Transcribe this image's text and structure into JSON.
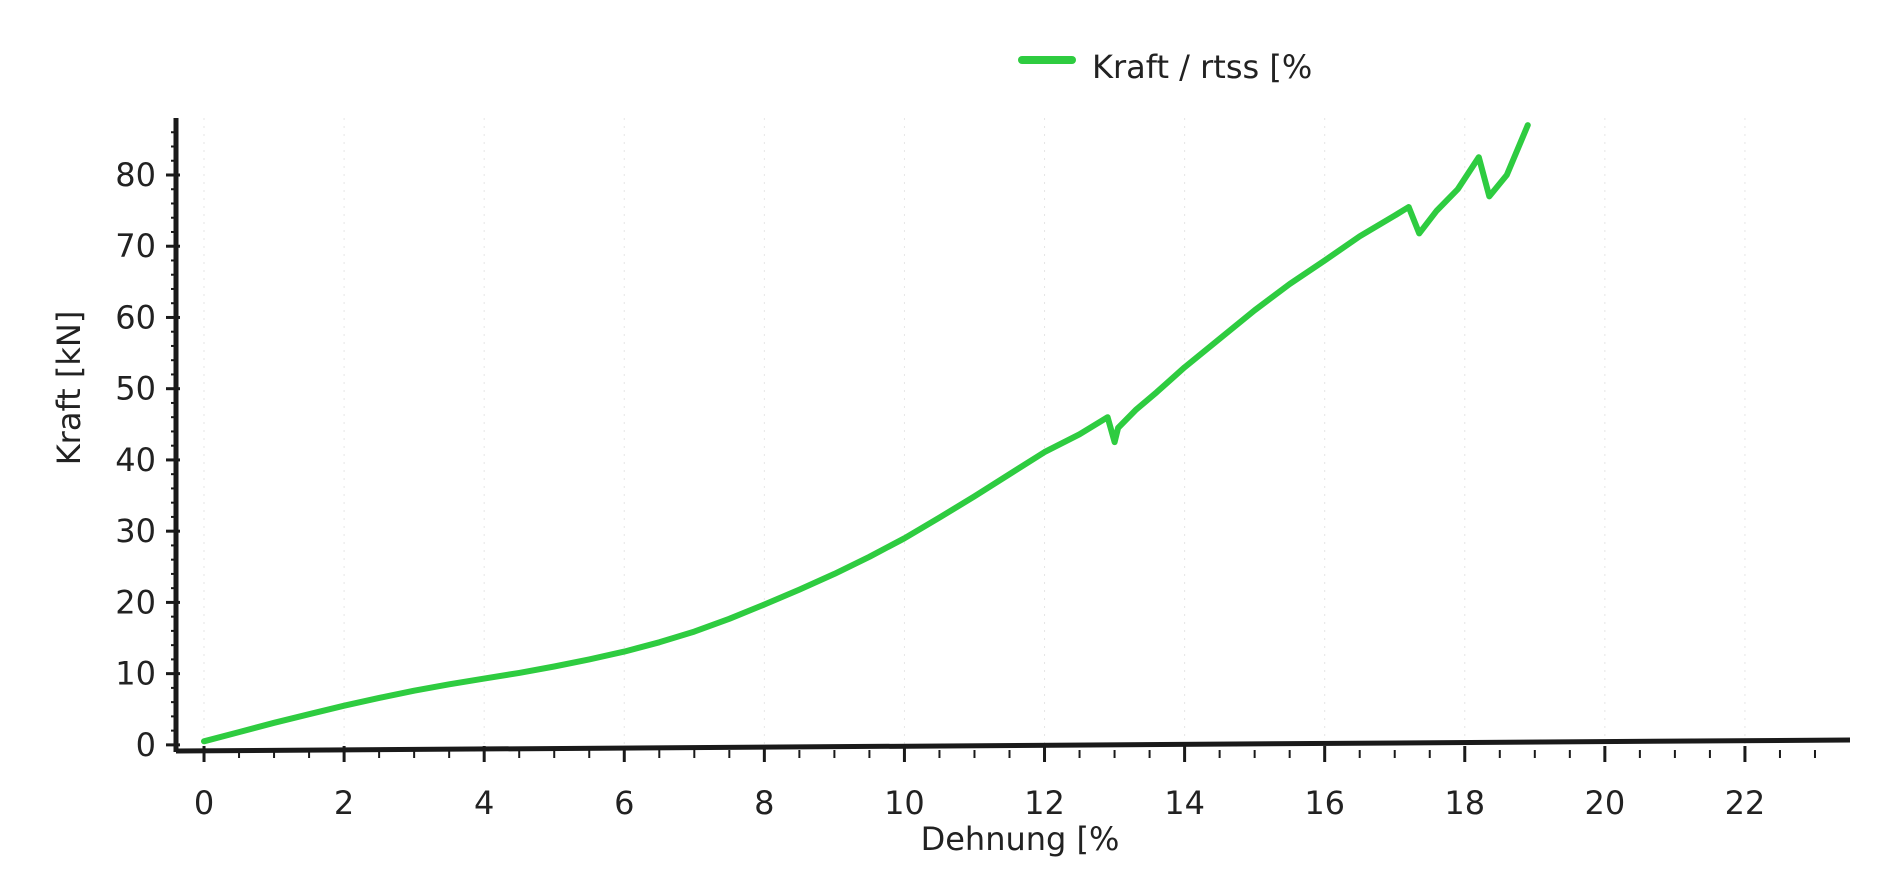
{
  "chart_data": {
    "type": "line",
    "title": "",
    "xlabel": "Dehnung [%",
    "ylabel": "Kraft [kN]",
    "xlim": [
      -0.4,
      23.5
    ],
    "ylim": [
      -1,
      88
    ],
    "x_ticks": [
      "0",
      "2",
      "4",
      "6",
      "8",
      "10",
      "12",
      "14",
      "16",
      "18",
      "20",
      "22"
    ],
    "x_tick_values": [
      0,
      2,
      4,
      6,
      8,
      10,
      12,
      14,
      16,
      18,
      20,
      22
    ],
    "y_ticks": [
      "0",
      "10",
      "20",
      "30",
      "40",
      "50",
      "60",
      "70",
      "80"
    ],
    "y_tick_values": [
      0,
      10,
      20,
      30,
      40,
      50,
      60,
      70,
      80
    ],
    "grid": true,
    "legend": {
      "position": "top-center"
    },
    "colors": {
      "series": "#2ecc40",
      "axis": "#1a1a1a",
      "grid": "#e6e6e6"
    },
    "series": [
      {
        "name": "Kraft / rtss [%",
        "x": [
          0,
          0.5,
          1,
          1.5,
          2,
          2.5,
          3,
          3.5,
          4,
          4.5,
          5,
          5.5,
          6,
          6.5,
          7,
          7.5,
          8,
          8.5,
          9,
          9.5,
          10,
          10.5,
          11,
          11.5,
          12,
          12.5,
          12.9,
          13.0,
          13.05,
          13.3,
          13.6,
          14,
          14.5,
          15,
          15.5,
          16,
          16.5,
          17,
          17.2,
          17.35,
          17.6,
          17.9,
          18.2,
          18.35,
          18.6,
          18.9
        ],
        "y": [
          0.5,
          1.8,
          3.1,
          4.3,
          5.5,
          6.6,
          7.6,
          8.5,
          9.3,
          10.1,
          11.0,
          12.0,
          13.1,
          14.4,
          15.9,
          17.7,
          19.7,
          21.8,
          24.0,
          26.4,
          29.0,
          31.9,
          34.9,
          38.0,
          41.1,
          43.6,
          46.0,
          42.5,
          44.5,
          47.0,
          49.5,
          53.0,
          57.0,
          61.0,
          64.7,
          68.0,
          71.4,
          74.3,
          75.5,
          71.8,
          75.0,
          78.0,
          82.5,
          77.0,
          80.0,
          87.0
        ]
      }
    ]
  }
}
